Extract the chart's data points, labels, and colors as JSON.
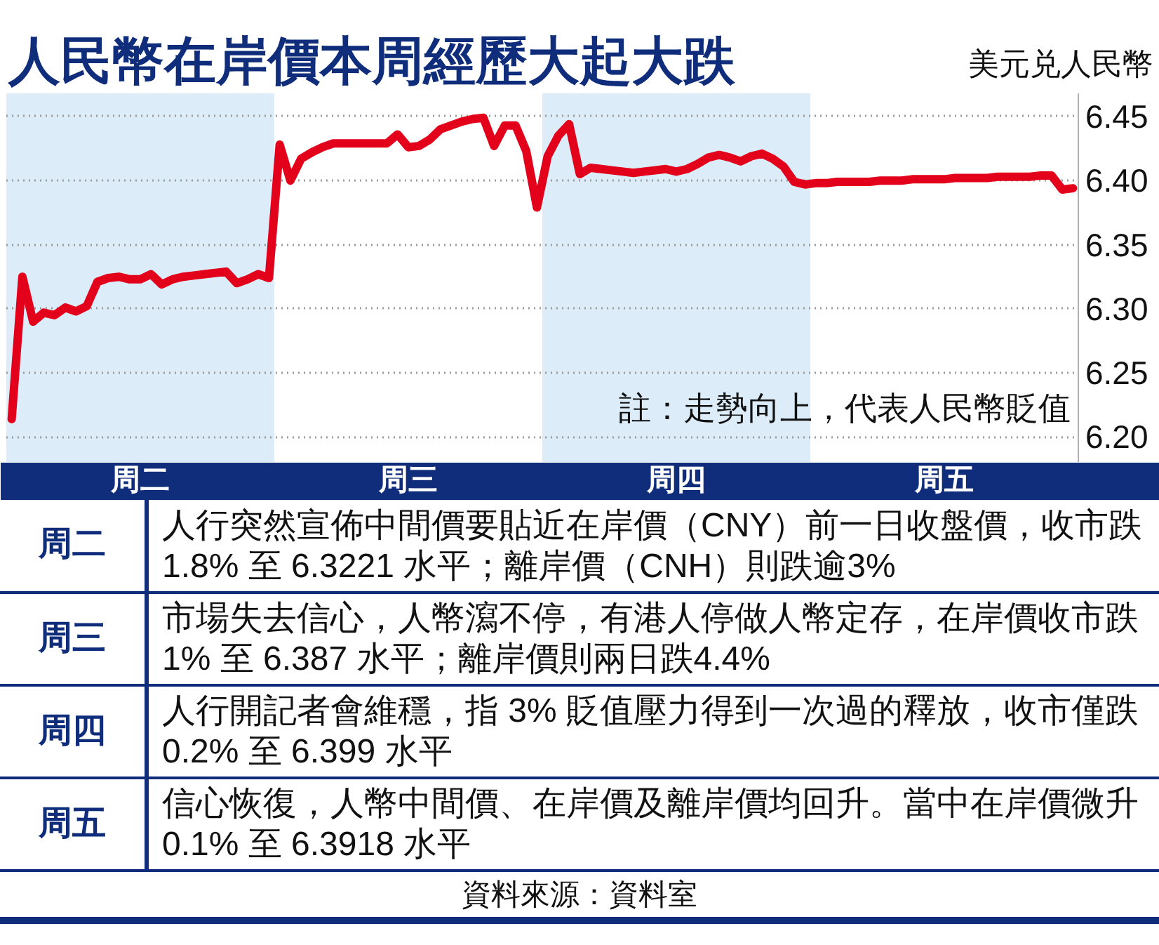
{
  "chart_data": {
    "type": "line",
    "title": "人民幣在岸價本周經歷大起大跌",
    "ylabel": "美元兑人民幣",
    "categories": [
      null,
      null,
      null,
      null,
      null,
      null,
      null,
      null,
      null,
      null,
      null,
      null,
      "周二",
      null,
      null,
      null,
      null,
      null,
      null,
      null,
      null,
      null,
      null,
      null,
      null,
      null,
      null,
      null,
      null,
      null,
      null,
      null,
      null,
      null,
      null,
      null,
      null,
      "周三",
      null,
      null,
      null,
      null,
      null,
      null,
      null,
      null,
      null,
      null,
      null,
      null,
      null,
      null,
      null,
      null,
      null,
      null,
      null,
      null,
      null,
      null,
      null,
      null,
      "周四",
      null,
      null,
      null,
      null,
      null,
      null,
      null,
      null,
      null,
      null,
      null,
      null,
      null,
      null,
      null,
      null,
      null,
      null,
      null,
      null,
      null,
      null,
      null,
      null,
      "周五",
      null,
      null,
      null,
      null,
      null,
      null,
      null,
      null,
      null,
      null,
      null,
      null
    ],
    "series": [
      {
        "color": "#e2001a",
        "values": [
          6.214,
          6.325,
          6.29,
          6.297,
          6.295,
          6.301,
          6.298,
          6.302,
          6.321,
          6.324,
          6.325,
          6.323,
          6.323,
          6.327,
          6.319,
          6.323,
          6.325,
          6.326,
          6.327,
          6.328,
          6.329,
          6.32,
          6.323,
          6.327,
          6.324,
          6.428,
          6.4,
          6.417,
          6.422,
          6.426,
          6.429,
          6.429,
          6.429,
          6.429,
          6.429,
          6.429,
          6.436,
          6.426,
          6.427,
          6.432,
          6.44,
          6.443,
          6.446,
          6.448,
          6.449,
          6.427,
          6.443,
          6.443,
          6.423,
          6.379,
          6.419,
          6.435,
          6.444,
          6.405,
          6.41,
          6.409,
          6.408,
          6.407,
          6.406,
          6.407,
          6.408,
          6.409,
          6.407,
          6.409,
          6.413,
          6.418,
          6.42,
          6.418,
          6.415,
          6.419,
          6.421,
          6.417,
          6.411,
          6.399,
          6.397,
          6.398,
          6.398,
          6.399,
          6.399,
          6.399,
          6.399,
          6.4,
          6.4,
          6.4,
          6.401,
          6.401,
          6.401,
          6.401,
          6.402,
          6.402,
          6.402,
          6.402,
          6.403,
          6.403,
          6.403,
          6.403,
          6.404,
          6.404,
          6.393,
          6.394
        ]
      }
    ],
    "ylim": [
      6.18,
      6.468
    ],
    "yticks": [
      {
        "value": 6.2,
        "label": "6.20"
      },
      6.25,
      {
        "value": 6.3,
        "label": "6.30"
      },
      6.35,
      {
        "value": 6.4,
        "label": "6.40"
      },
      6.45
    ],
    "grid": "y",
    "line_style": "solid",
    "annotations": [
      "註：走勢向上，代表人民幣貶值",
      "周二",
      "人行突然宣佈中間價要貼近在岸價（CNY）前一日收盤價，收市跌1.8% 至 6.3221 水平；離岸價（CNH）則跌逾3%",
      "周三",
      "市場失去信心，人幣瀉不停，有港人停做人幣定存，在岸價收市跌1% 至 6.387 水平；離岸價則兩日跌4.4%",
      "周四",
      "人行開記者會維穩，指 3% 貶值壓力得到一次過的釋放，收市僅跌0.2% 至 6.399 水平",
      "周五",
      "信心恢復，人幣中間價、在岸價及離岸價均回升。當中在岸價微升0.1% 至 6.3918 水平",
      "資料來源：資料室"
    ]
  }
}
